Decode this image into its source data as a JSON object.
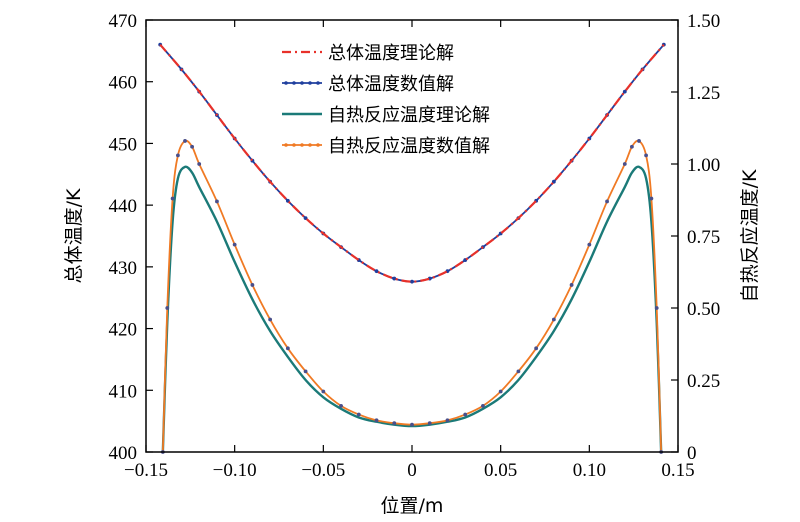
{
  "chart_data": {
    "type": "line",
    "xlabel": "位置/m",
    "ylabel_left": "总体温度/K",
    "ylabel_right": "自热反应温度/K",
    "xlim": [
      -0.15,
      0.15
    ],
    "ylim_left": [
      400,
      470
    ],
    "ylim_right": [
      0,
      1.5
    ],
    "x_ticks": [
      -0.15,
      -0.1,
      -0.05,
      0,
      0.05,
      0.1,
      0.15
    ],
    "x_tick_labels": [
      "−0.15",
      "−0.10",
      "−0.05",
      "0",
      "0.05",
      "0.10",
      "0.15"
    ],
    "y_left_ticks": [
      400,
      410,
      420,
      430,
      440,
      450,
      460,
      470
    ],
    "y_left_tick_labels": [
      "400",
      "410",
      "420",
      "430",
      "440",
      "450",
      "460",
      "470"
    ],
    "y_right_ticks": [
      0,
      0.25,
      0.5,
      0.75,
      1.0,
      1.25,
      1.5
    ],
    "y_right_tick_labels": [
      "0",
      "0.25",
      "0.50",
      "0.75",
      "1.00",
      "1.25",
      "1.50"
    ],
    "legend_position": "top-center",
    "colors": {
      "total_theory": "#e8312a",
      "total_numeric": "#1f3f9e",
      "self_theory": "#1b7a78",
      "self_numeric": "#f07a24"
    },
    "series": [
      {
        "name": "总体温度理论解",
        "axis": "left",
        "style": "dashdot",
        "x": [
          -0.142,
          -0.13,
          -0.12,
          -0.11,
          -0.1,
          -0.09,
          -0.08,
          -0.07,
          -0.06,
          -0.05,
          -0.04,
          -0.03,
          -0.02,
          -0.01,
          0,
          0.01,
          0.02,
          0.03,
          0.04,
          0.05,
          0.06,
          0.07,
          0.08,
          0.09,
          0.1,
          0.11,
          0.12,
          0.13,
          0.142
        ],
        "y": [
          466.0,
          462.0,
          458.4,
          454.6,
          450.8,
          447.2,
          443.8,
          440.7,
          437.9,
          435.4,
          433.2,
          431.1,
          429.3,
          428.1,
          427.6,
          428.1,
          429.3,
          431.1,
          433.2,
          435.4,
          437.9,
          440.7,
          443.8,
          447.2,
          450.8,
          454.6,
          458.4,
          462.0,
          466.0
        ]
      },
      {
        "name": "总体温度数值解",
        "axis": "left",
        "style": "solid-dots",
        "x": [
          -0.142,
          -0.13,
          -0.12,
          -0.11,
          -0.1,
          -0.09,
          -0.08,
          -0.07,
          -0.06,
          -0.05,
          -0.04,
          -0.03,
          -0.02,
          -0.01,
          0,
          0.01,
          0.02,
          0.03,
          0.04,
          0.05,
          0.06,
          0.07,
          0.08,
          0.09,
          0.1,
          0.11,
          0.12,
          0.13,
          0.142
        ],
        "y": [
          466.0,
          462.0,
          458.4,
          454.6,
          450.8,
          447.2,
          443.8,
          440.7,
          437.9,
          435.4,
          433.2,
          431.1,
          429.3,
          428.1,
          427.6,
          428.1,
          429.3,
          431.1,
          433.2,
          435.4,
          437.9,
          440.7,
          443.8,
          447.2,
          450.8,
          454.6,
          458.4,
          462.0,
          466.0
        ]
      },
      {
        "name": "自热反应温度理论解",
        "axis": "right",
        "style": "solid",
        "x": [
          -0.1405,
          -0.138,
          -0.135,
          -0.132,
          -0.128,
          -0.124,
          -0.12,
          -0.11,
          -0.1,
          -0.09,
          -0.08,
          -0.07,
          -0.06,
          -0.05,
          -0.04,
          -0.03,
          -0.02,
          -0.01,
          0,
          0.01,
          0.02,
          0.03,
          0.04,
          0.05,
          0.06,
          0.07,
          0.08,
          0.09,
          0.1,
          0.11,
          0.12,
          0.124,
          0.128,
          0.132,
          0.135,
          0.138,
          0.1405
        ],
        "y": [
          0.0,
          0.45,
          0.8,
          0.95,
          0.99,
          0.97,
          0.92,
          0.8,
          0.66,
          0.53,
          0.42,
          0.33,
          0.25,
          0.19,
          0.15,
          0.12,
          0.105,
          0.095,
          0.09,
          0.095,
          0.105,
          0.12,
          0.15,
          0.19,
          0.25,
          0.33,
          0.42,
          0.53,
          0.66,
          0.8,
          0.92,
          0.97,
          0.99,
          0.95,
          0.8,
          0.45,
          0.0
        ]
      },
      {
        "name": "自热反应温度数值解",
        "axis": "right",
        "style": "solid-dots",
        "x": [
          -0.1405,
          -0.138,
          -0.135,
          -0.132,
          -0.128,
          -0.124,
          -0.12,
          -0.11,
          -0.1,
          -0.09,
          -0.08,
          -0.07,
          -0.06,
          -0.05,
          -0.04,
          -0.03,
          -0.02,
          -0.01,
          0,
          0.01,
          0.02,
          0.03,
          0.04,
          0.05,
          0.06,
          0.07,
          0.08,
          0.09,
          0.1,
          0.11,
          0.12,
          0.124,
          0.128,
          0.132,
          0.135,
          0.138,
          0.1405
        ],
        "y": [
          0.0,
          0.5,
          0.88,
          1.03,
          1.08,
          1.06,
          1.0,
          0.87,
          0.72,
          0.58,
          0.46,
          0.36,
          0.28,
          0.21,
          0.16,
          0.13,
          0.11,
          0.1,
          0.095,
          0.1,
          0.11,
          0.13,
          0.16,
          0.21,
          0.28,
          0.36,
          0.46,
          0.58,
          0.72,
          0.87,
          1.0,
          1.06,
          1.08,
          1.03,
          0.88,
          0.5,
          0.0
        ]
      }
    ]
  }
}
